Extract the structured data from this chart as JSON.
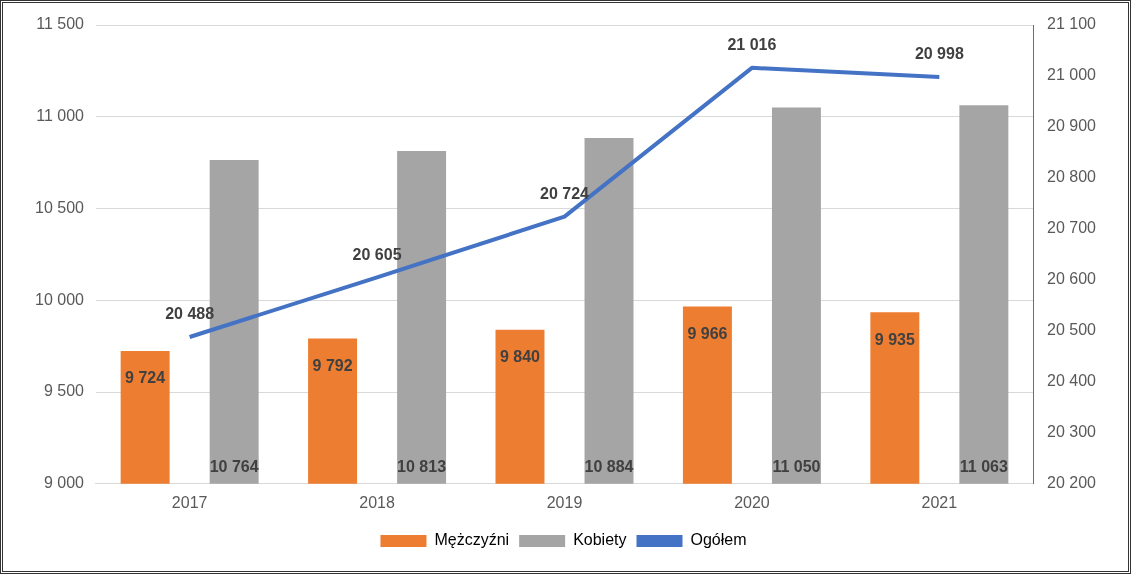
{
  "chart_data": {
    "type": "bar",
    "categories": [
      "2017",
      "2018",
      "2019",
      "2020",
      "2021"
    ],
    "series": [
      {
        "name": "Mężczyźni",
        "color": "#ed7d31",
        "values": [
          9724,
          9792,
          9840,
          9966,
          9935
        ],
        "value_labels": [
          "9 724",
          "9 792",
          "9 840",
          "9 966",
          "9 935"
        ]
      },
      {
        "name": "Kobiety",
        "color": "#a5a5a5",
        "values": [
          10764,
          10813,
          10884,
          11050,
          11063
        ],
        "value_labels": [
          "10 764",
          "10 813",
          "10 884",
          "11 050",
          "11 063"
        ]
      },
      {
        "name": "Ogółem",
        "type": "line",
        "axis": "y2",
        "color": "#4472c4",
        "marker": "none",
        "values": [
          20488,
          20605,
          20724,
          21016,
          20998
        ],
        "value_labels": [
          "20 488",
          "20 605",
          "20 724",
          "21 016",
          "20 998"
        ]
      }
    ],
    "ylim": [
      9000,
      11500
    ],
    "yticks": [
      {
        "value": 9000,
        "label": "9 000"
      },
      {
        "value": 9500,
        "label": "9 500"
      },
      {
        "value": 10000,
        "label": "10 000"
      },
      {
        "value": 10500,
        "label": "10 500"
      },
      {
        "value": 11000,
        "label": "11 000"
      },
      {
        "value": 11500,
        "label": "11 500"
      }
    ],
    "y2lim": [
      20200,
      21100
    ],
    "y2ticks": [
      {
        "value": 20200,
        "label": "20 200"
      },
      {
        "value": 20300,
        "label": "20 300"
      },
      {
        "value": 20400,
        "label": "20 400"
      },
      {
        "value": 20500,
        "label": "20 500"
      },
      {
        "value": 20600,
        "label": "20 600"
      },
      {
        "value": 20700,
        "label": "20 700"
      },
      {
        "value": 20800,
        "label": "20 800"
      },
      {
        "value": 20900,
        "label": "20 900"
      },
      {
        "value": 21000,
        "label": "21 000"
      },
      {
        "value": 21100,
        "label": "21 100"
      }
    ],
    "grid": "y",
    "legend": "bottom"
  }
}
